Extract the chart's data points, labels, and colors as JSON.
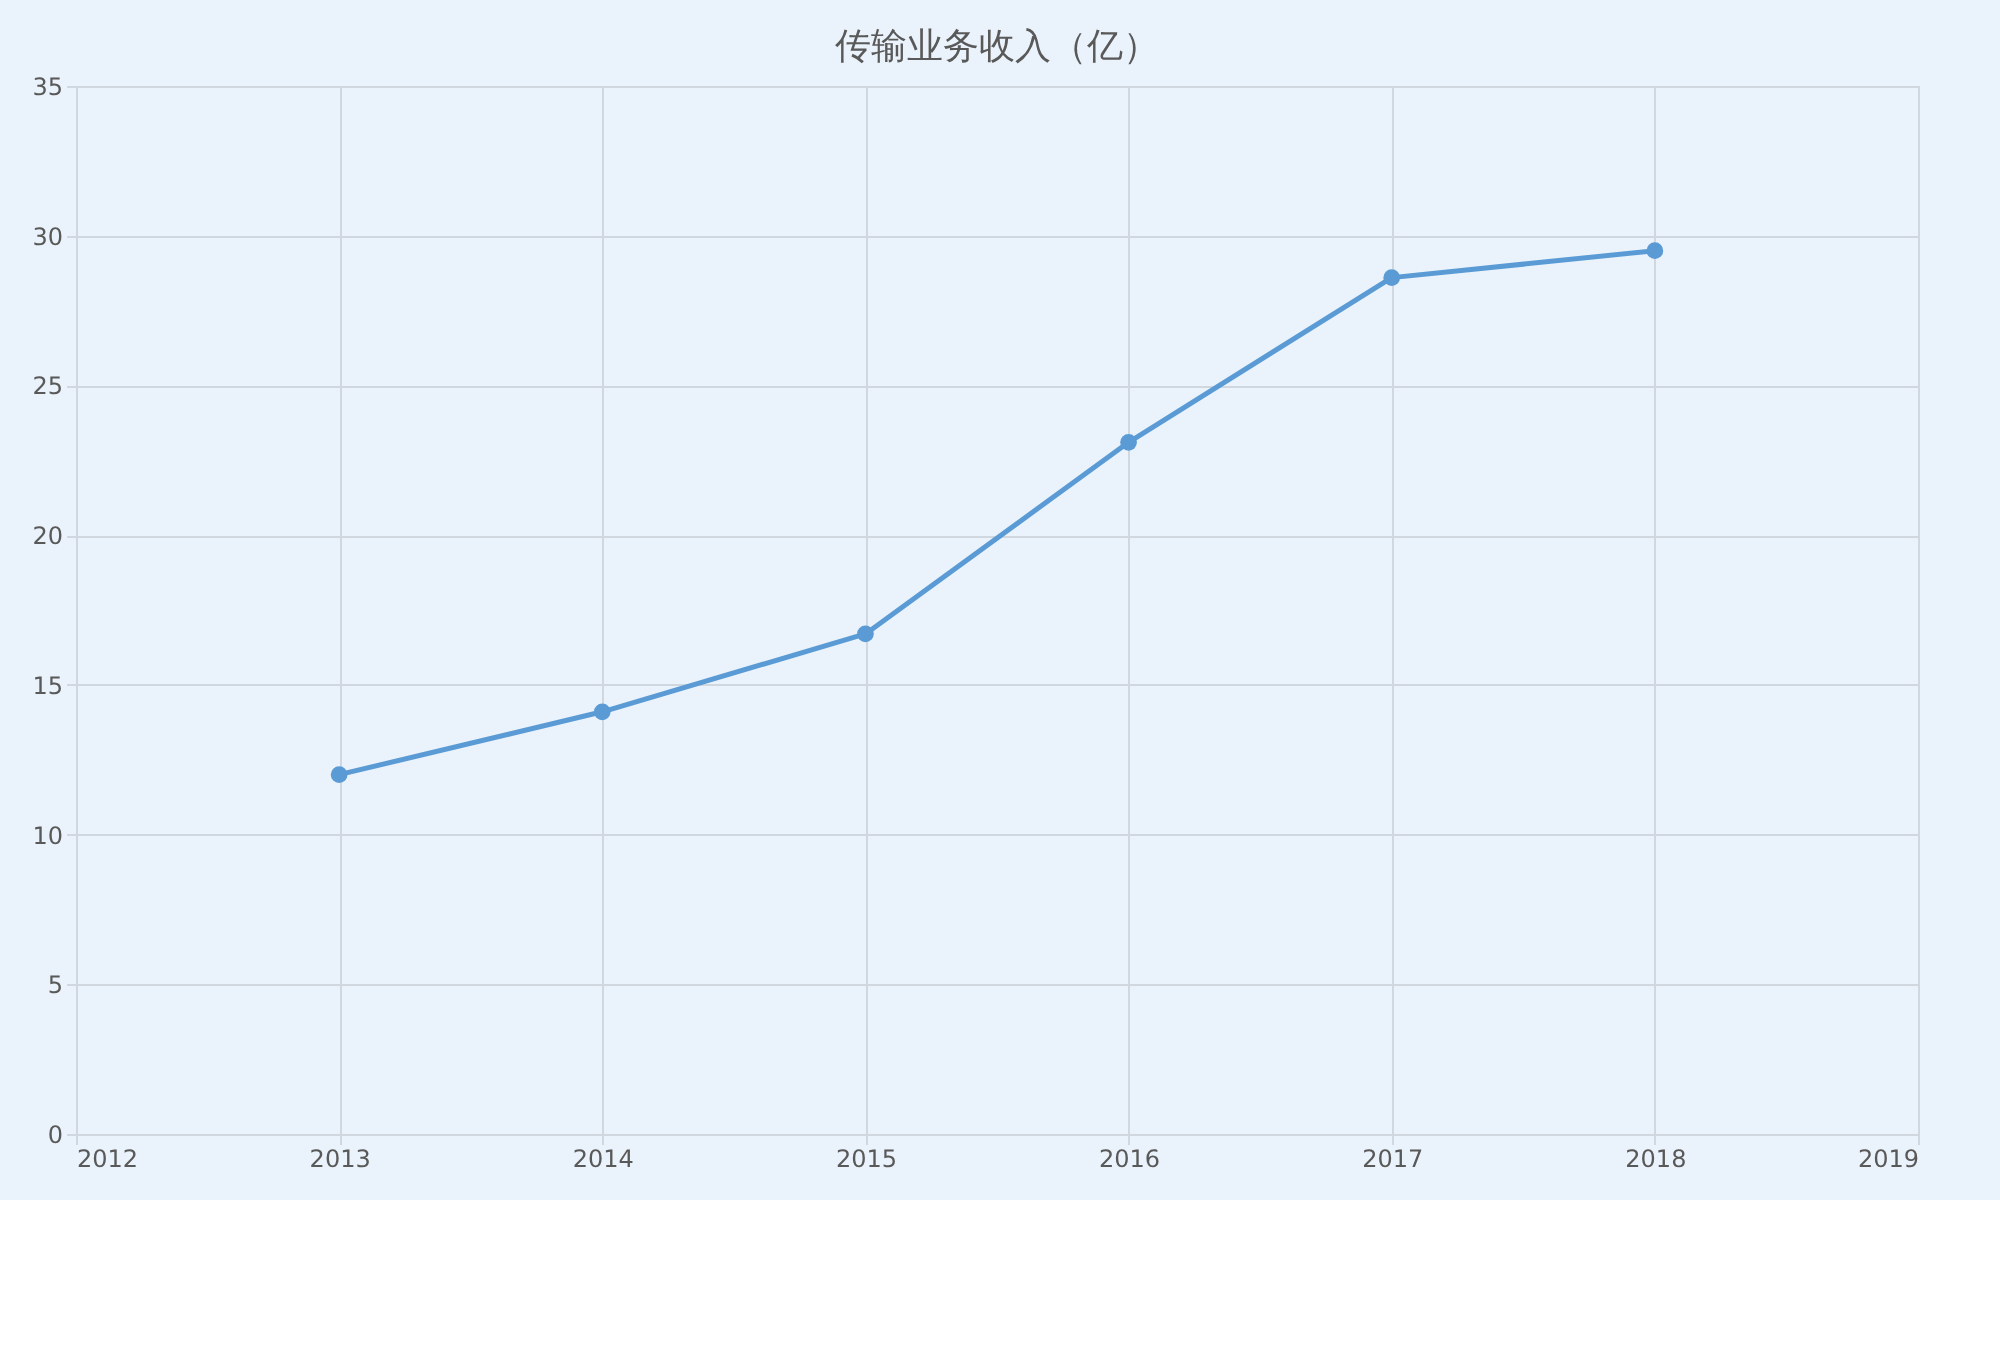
{
  "chart_data": {
    "type": "line",
    "title": "传输业务收入（亿）",
    "x": [
      2013,
      2014,
      2015,
      2016,
      2017,
      2018
    ],
    "series": [
      {
        "color": "#5b9bd5",
        "values": [
          12,
          14.1,
          16.7,
          23.1,
          28.6,
          29.5
        ]
      }
    ],
    "xlim": [
      2012,
      2019
    ],
    "xticks": [
      2012,
      2013,
      2014,
      2015,
      2016,
      2017,
      2018,
      2019
    ],
    "ylim": [
      0,
      35
    ],
    "yticks": [
      0,
      5,
      10,
      15,
      20,
      25,
      30,
      35
    ],
    "grid": true,
    "marker": "circle",
    "line_style": "solid"
  }
}
